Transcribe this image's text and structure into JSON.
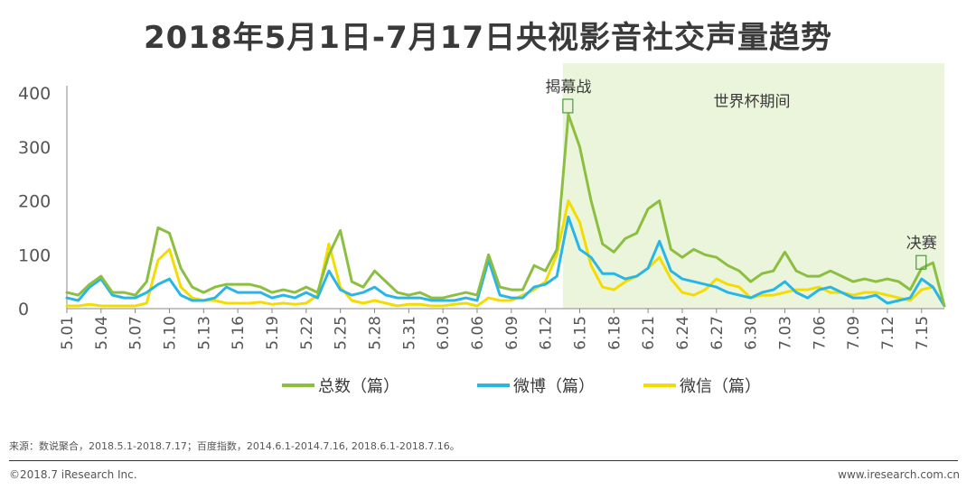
{
  "title": "2018年5月1日-7月17日央视影音社交声量趋势",
  "chart_data": {
    "type": "line",
    "categories": [
      "5.01",
      "5.02",
      "5.03",
      "5.04",
      "5.05",
      "5.06",
      "5.07",
      "5.08",
      "5.09",
      "5.10",
      "5.11",
      "5.12",
      "5.13",
      "5.14",
      "5.15",
      "5.16",
      "5.17",
      "5.18",
      "5.19",
      "5.20",
      "5.21",
      "5.22",
      "5.23",
      "5.24",
      "5.25",
      "5.26",
      "5.27",
      "5.28",
      "5.29",
      "5.30",
      "5.31",
      "6.01",
      "6.02",
      "6.03",
      "6.04",
      "6.05",
      "6.06",
      "6.07",
      "6.08",
      "6.09",
      "6.10",
      "6.11",
      "6.12",
      "6.13",
      "6.14",
      "6.15",
      "6.16",
      "6.17",
      "6.18",
      "6.19",
      "6.20",
      "6.21",
      "6.22",
      "6.23",
      "6.24",
      "6.25",
      "6.26",
      "6.27",
      "6.28",
      "6.29",
      "6.30",
      "7.01",
      "7.02",
      "7.03",
      "7.04",
      "7.05",
      "7.06",
      "7.07",
      "7.08",
      "7.09",
      "7.10",
      "7.11",
      "7.12",
      "7.13",
      "7.14",
      "7.15",
      "7.16",
      "7.17"
    ],
    "x_tick_labels": [
      "5.01",
      "5.04",
      "5.07",
      "5.10",
      "5.13",
      "5.16",
      "5.19",
      "5.22",
      "5.25",
      "5.28",
      "5.31",
      "6.03",
      "6.06",
      "6.09",
      "6.12",
      "6.15",
      "6.18",
      "6.21",
      "6.24",
      "6.27",
      "6.30",
      "7.03",
      "7.06",
      "7.09",
      "7.12",
      "7.15"
    ],
    "y_ticks": [
      0,
      100,
      200,
      300,
      400
    ],
    "ylim": [
      0,
      400
    ],
    "series": [
      {
        "name": "总数（篇）",
        "color": "#8cbf3f",
        "values": [
          30,
          25,
          45,
          60,
          30,
          30,
          25,
          50,
          150,
          140,
          75,
          40,
          30,
          40,
          45,
          45,
          45,
          40,
          30,
          35,
          30,
          40,
          30,
          100,
          145,
          50,
          40,
          70,
          50,
          30,
          25,
          30,
          20,
          20,
          25,
          30,
          25,
          100,
          40,
          35,
          35,
          80,
          70,
          110,
          360,
          300,
          200,
          120,
          105,
          130,
          140,
          185,
          200,
          110,
          95,
          110,
          100,
          95,
          80,
          70,
          50,
          65,
          70,
          105,
          70,
          60,
          60,
          70,
          60,
          50,
          55,
          50,
          55,
          50,
          35,
          75,
          85,
          5
        ]
      },
      {
        "name": "微博（篇）",
        "color": "#29b6e6",
        "values": [
          20,
          15,
          40,
          55,
          25,
          20,
          20,
          30,
          45,
          55,
          25,
          15,
          15,
          20,
          40,
          30,
          30,
          30,
          20,
          25,
          20,
          30,
          20,
          70,
          35,
          25,
          30,
          40,
          25,
          20,
          20,
          20,
          15,
          15,
          15,
          20,
          15,
          90,
          25,
          20,
          20,
          40,
          45,
          60,
          170,
          110,
          95,
          65,
          65,
          55,
          60,
          75,
          125,
          70,
          55,
          50,
          45,
          40,
          30,
          25,
          20,
          30,
          35,
          50,
          30,
          20,
          35,
          40,
          30,
          20,
          20,
          25,
          10,
          15,
          20,
          55,
          40,
          5
        ]
      },
      {
        "name": "微信（篇）",
        "color": "#f5dc00",
        "values": [
          5,
          5,
          8,
          5,
          5,
          5,
          5,
          10,
          90,
          110,
          40,
          20,
          15,
          15,
          10,
          10,
          10,
          12,
          8,
          10,
          8,
          10,
          25,
          120,
          40,
          15,
          10,
          15,
          10,
          5,
          8,
          8,
          5,
          5,
          8,
          10,
          5,
          20,
          15,
          15,
          25,
          35,
          50,
          100,
          200,
          160,
          80,
          40,
          35,
          50,
          60,
          75,
          95,
          55,
          30,
          25,
          35,
          55,
          45,
          40,
          20,
          25,
          25,
          30,
          35,
          35,
          40,
          30,
          30,
          25,
          30,
          30,
          25,
          20,
          15,
          35,
          40,
          5
        ]
      }
    ],
    "legend_position": "bottom",
    "shaded_region": {
      "from": "6.14",
      "to": "7.17",
      "label": "世界杯期间",
      "color": "#ebf5dc"
    },
    "annotations": [
      {
        "label": "揭幕战",
        "at": "6.14",
        "value": 375
      },
      {
        "label": "决赛",
        "at": "7.15",
        "value": 85
      }
    ]
  },
  "source": "来源：数说聚合，2018.5.1-2018.7.17；百度指数，2014.6.1-2014.7.16, 2018.6.1-2018.7.16。",
  "copyright": "©2018.7 iResearch Inc.",
  "website": "www.iresearch.com.cn"
}
